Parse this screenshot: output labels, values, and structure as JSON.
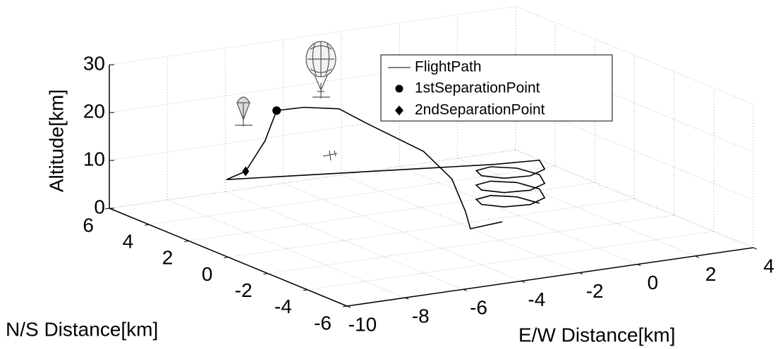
{
  "chart_data": {
    "type": "line3d",
    "xlabel": "E/W Distance[km]",
    "ylabel": "N/S Distance[km]",
    "zlabel": "Altitude[km]",
    "xlim": [
      -10,
      4
    ],
    "ylim": [
      -6,
      6
    ],
    "zlim": [
      0,
      30
    ],
    "xticks": [
      -10,
      -8,
      -6,
      -4,
      -2,
      0,
      2,
      4
    ],
    "yticks": [
      -6,
      -4,
      -2,
      0,
      2,
      4,
      6
    ],
    "zticks": [
      0,
      10,
      20,
      30
    ],
    "grid": true,
    "series": [
      {
        "name": "FlightPath",
        "color": "#000000",
        "marker": "none",
        "x": [
          1,
          0.7,
          0,
          -0.7,
          -1,
          -0.7,
          0,
          0.7,
          1,
          0.7,
          0,
          -0.7,
          -1,
          -0.7,
          0,
          0.7,
          1,
          0.7,
          0,
          -0.7,
          -1,
          -0.7,
          0,
          0.7,
          1,
          -0.4,
          -7.6,
          -6.6,
          -6,
          -5.6,
          -5,
          -4.2,
          -3.8,
          -3.2,
          -2.7,
          -2.3,
          -2.2,
          -1.1
        ],
        "y": [
          0.4,
          1.1,
          1.4,
          1.1,
          0.4,
          -0.3,
          -0.6,
          -0.3,
          0.4,
          1.1,
          1.4,
          1.1,
          0.4,
          -0.3,
          -0.6,
          -0.3,
          0.4,
          1.1,
          1.4,
          1.1,
          0.4,
          -0.3,
          -0.6,
          -0.3,
          0.4,
          0.6,
          3.6,
          4.1,
          4,
          4,
          3.5,
          2.9,
          2.1,
          0.1,
          -0.6,
          -0.7,
          -0.8,
          -0.8
        ],
        "z": [
          1,
          1.4,
          1.8,
          2.1,
          2.5,
          2.9,
          3.3,
          3.6,
          4,
          4.4,
          4.8,
          5.1,
          5.5,
          5.9,
          6.3,
          6.6,
          7,
          7.4,
          7.8,
          8.1,
          8.5,
          8.9,
          9.3,
          9.6,
          10,
          10,
          8,
          8,
          14,
          20,
          21,
          21,
          19,
          16,
          11,
          4,
          0.5,
          1
        ]
      },
      {
        "name": "1stSeparationPoint",
        "color": "#000000",
        "marker": "circle",
        "x": [
          -5.6
        ],
        "y": [
          4
        ],
        "z": [
          20
        ]
      },
      {
        "name": "2ndSeparationPoint",
        "color": "#000000",
        "marker": "diamond",
        "x": [
          -6.6
        ],
        "y": [
          4.1
        ],
        "z": [
          8
        ]
      }
    ],
    "legend": "top-right"
  }
}
